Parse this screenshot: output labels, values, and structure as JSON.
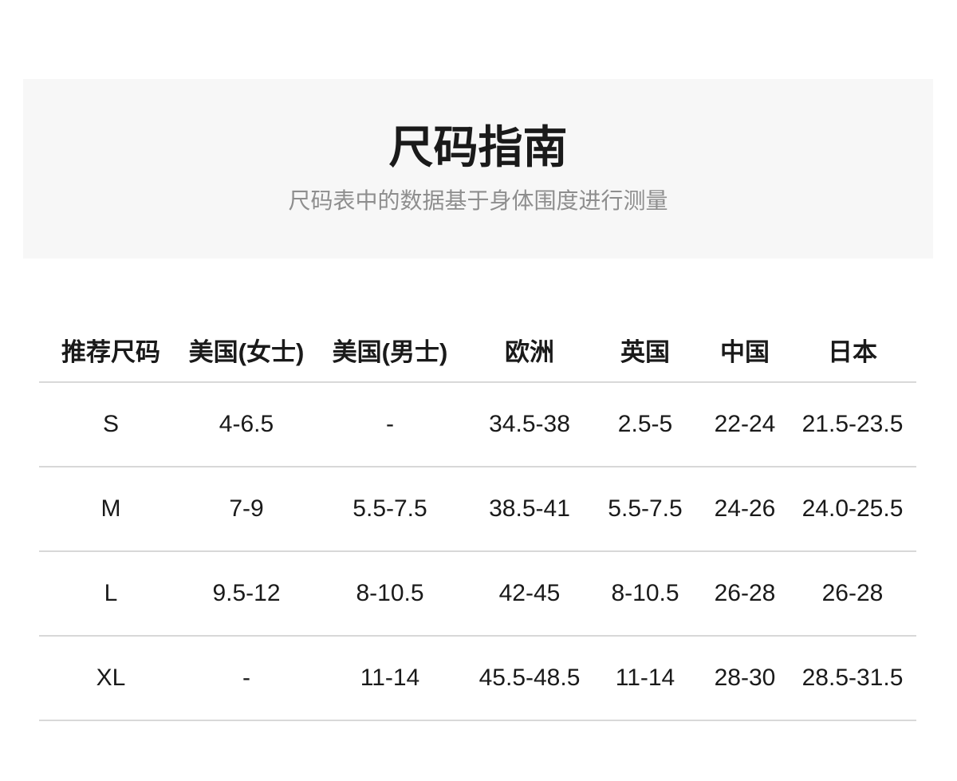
{
  "hero": {
    "title": "尺码指南",
    "subtitle": "尺码表中的数据基于身体围度进行测量",
    "background_color": "#f7f7f7",
    "title_color": "#1a1a1a",
    "subtitle_color": "#8e8e8e"
  },
  "size_table": {
    "columns": [
      "推荐尺码",
      "美国(女士)",
      "美国(男士)",
      "欧洲",
      "英国",
      "中国",
      "日本"
    ],
    "rows": [
      [
        "S",
        "4-6.5",
        "-",
        "34.5-38",
        "2.5-5",
        "22-24",
        "21.5-23.5"
      ],
      [
        "M",
        "7-9",
        "5.5-7.5",
        "38.5-41",
        "5.5-7.5",
        "24-26",
        "24.0-25.5"
      ],
      [
        "L",
        "9.5-12",
        "8-10.5",
        "42-45",
        "8-10.5",
        "26-28",
        "26-28"
      ],
      [
        "XL",
        "-",
        "11-14",
        "45.5-48.5",
        "11-14",
        "28-30",
        "28.5-31.5"
      ]
    ],
    "divider_color": "#d8d8d8",
    "text_color": "#1a1a1a"
  }
}
